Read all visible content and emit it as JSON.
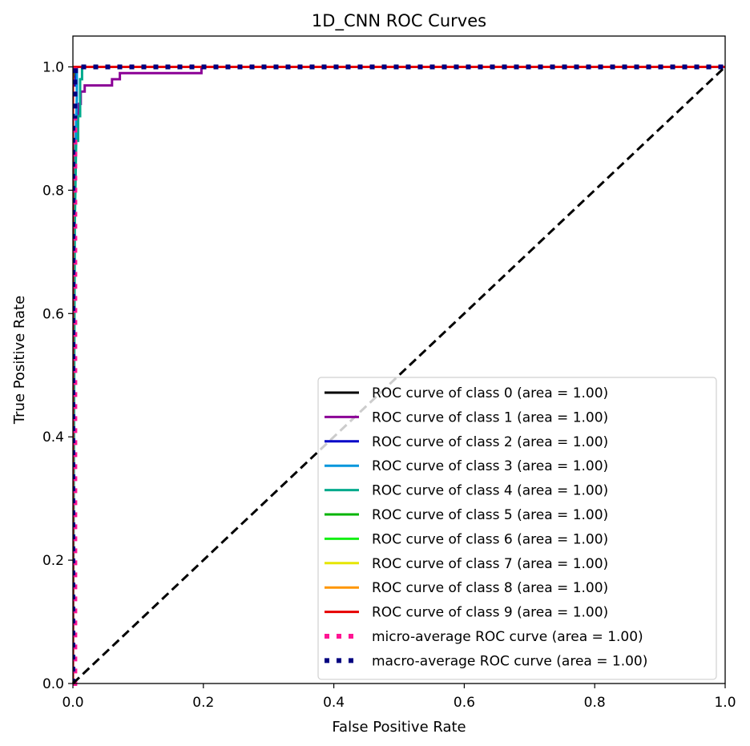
{
  "chart_data": {
    "type": "line",
    "title": "1D_CNN ROC Curves",
    "xlabel": "False Positive Rate",
    "ylabel": "True Positive Rate",
    "xlim": [
      0.0,
      1.0
    ],
    "ylim": [
      0.0,
      1.05
    ],
    "xticks": [
      0.0,
      0.2,
      0.4,
      0.6,
      0.8,
      1.0
    ],
    "yticks": [
      0.0,
      0.2,
      0.4,
      0.6,
      0.8,
      1.0
    ],
    "xtick_labels": [
      "0.0",
      "0.2",
      "0.4",
      "0.6",
      "0.8",
      "1.0"
    ],
    "ytick_labels": [
      "0.0",
      "0.2",
      "0.4",
      "0.6",
      "0.8",
      "1.0"
    ],
    "grid": false,
    "legend_position": "lower-right",
    "series": [
      {
        "name": "ROC curve of class 0 (area = 1.00)",
        "color": "#000000",
        "style": "solid",
        "x": [
          0.0,
          0.0,
          0.002,
          1.0
        ],
        "y": [
          0.0,
          0.99,
          1.0,
          1.0
        ]
      },
      {
        "name": "ROC curve of class 1 (area = 1.00)",
        "color": "#8b0096",
        "style": "solid",
        "x": [
          0.0,
          0.0,
          0.005,
          0.005,
          0.008,
          0.008,
          0.012,
          0.012,
          0.018,
          0.018,
          0.06,
          0.06,
          0.072,
          0.072,
          0.197,
          0.197,
          1.0
        ],
        "y": [
          0.0,
          0.88,
          0.88,
          0.9,
          0.9,
          0.94,
          0.94,
          0.96,
          0.96,
          0.97,
          0.97,
          0.98,
          0.98,
          0.99,
          0.99,
          1.0,
          1.0
        ]
      },
      {
        "name": "ROC curve of class 2 (area = 1.00)",
        "color": "#0000c8",
        "style": "solid",
        "x": [
          0.0,
          0.0,
          0.004,
          0.004,
          1.0
        ],
        "y": [
          0.0,
          0.97,
          0.97,
          1.0,
          1.0
        ]
      },
      {
        "name": "ROC curve of class 3 (area = 1.00)",
        "color": "#0096dc",
        "style": "solid",
        "x": [
          0.0,
          0.002,
          0.006,
          0.006,
          1.0
        ],
        "y": [
          0.0,
          0.8,
          0.95,
          1.0,
          1.0
        ]
      },
      {
        "name": "ROC curve of class 4 (area = 1.00)",
        "color": "#00aa8c",
        "style": "solid",
        "x": [
          0.0,
          0.003,
          0.005,
          0.008,
          0.008,
          0.011,
          0.011,
          0.014,
          0.014,
          1.0
        ],
        "y": [
          0.0,
          0.75,
          0.88,
          0.88,
          0.92,
          0.92,
          0.98,
          0.98,
          1.0,
          1.0
        ]
      },
      {
        "name": "ROC curve of class 5 (area = 1.00)",
        "color": "#00b400",
        "style": "solid",
        "x": [
          0.0,
          0.0,
          0.003,
          1.0
        ],
        "y": [
          0.0,
          0.98,
          1.0,
          1.0
        ]
      },
      {
        "name": "ROC curve of class 6 (area = 1.00)",
        "color": "#14f014",
        "style": "solid",
        "x": [
          0.0,
          0.0,
          0.002,
          1.0
        ],
        "y": [
          0.0,
          0.99,
          1.0,
          1.0
        ]
      },
      {
        "name": "ROC curve of class 7 (area = 1.00)",
        "color": "#e6e600",
        "style": "solid",
        "x": [
          0.0,
          0.0,
          0.002,
          1.0
        ],
        "y": [
          0.0,
          0.99,
          1.0,
          1.0
        ]
      },
      {
        "name": "ROC curve of class 8 (area = 1.00)",
        "color": "#ff9600",
        "style": "solid",
        "x": [
          0.0,
          0.0,
          0.002,
          1.0
        ],
        "y": [
          0.0,
          0.99,
          1.0,
          1.0
        ]
      },
      {
        "name": "ROC curve of class 9 (area = 1.00)",
        "color": "#e60000",
        "style": "solid",
        "x": [
          0.0,
          0.0,
          0.002,
          1.0
        ],
        "y": [
          0.0,
          0.99,
          1.0,
          1.0
        ]
      },
      {
        "name": "micro-average ROC curve (area = 1.00)",
        "color": "#ff1493",
        "style": "dotted",
        "x": [
          0.0,
          0.003,
          0.003,
          1.0
        ],
        "y": [
          0.0,
          0.0,
          1.0,
          1.0
        ]
      },
      {
        "name": "macro-average ROC curve (area = 1.00)",
        "color": "#000080",
        "style": "dotted",
        "x": [
          0.0,
          0.0,
          0.003,
          0.003,
          0.004,
          0.004,
          1.0
        ],
        "y": [
          0.0,
          0.92,
          0.92,
          0.98,
          0.98,
          1.0,
          1.0
        ]
      }
    ],
    "reference_line": {
      "x": [
        0.0,
        1.0
      ],
      "y": [
        0.0,
        1.0
      ],
      "color": "#000000",
      "style": "dashed"
    }
  }
}
